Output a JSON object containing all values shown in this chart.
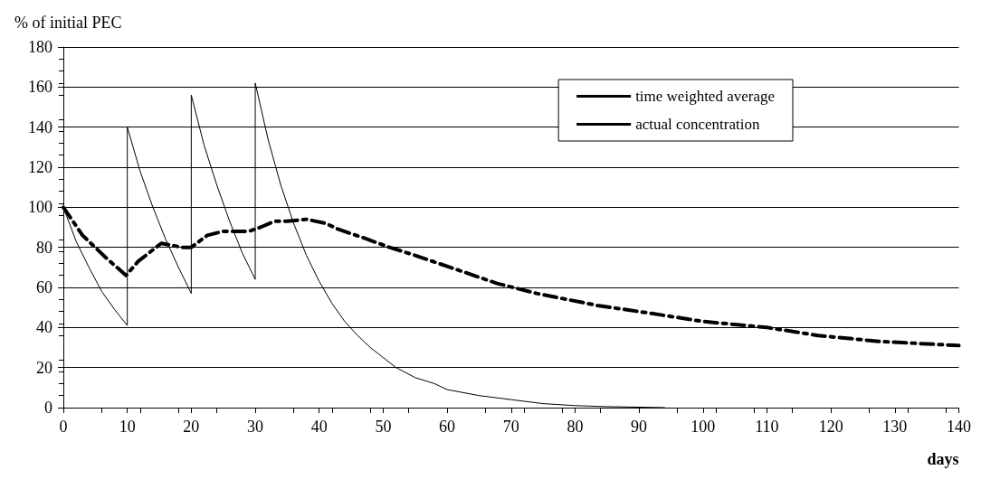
{
  "chart_data": {
    "type": "line",
    "ylabel": "% of initial PEC",
    "xlabel": "days",
    "xlim": [
      0,
      140
    ],
    "xticks": [
      0,
      10,
      20,
      30,
      40,
      50,
      60,
      70,
      80,
      90,
      100,
      110,
      120,
      130,
      140
    ],
    "ylim": [
      0,
      180
    ],
    "yticks": [
      0,
      20,
      40,
      60,
      80,
      100,
      120,
      140,
      160,
      180
    ],
    "grid": "y",
    "legend": "top right",
    "marker": "none",
    "series": [
      {
        "name": "time weighted average",
        "color": "#000000",
        "line_style": "dashed",
        "x": [
          0,
          3,
          6.6,
          9.8,
          11.7,
          15.3,
          18.6,
          20,
          22.5,
          25,
          29,
          30.8,
          33,
          35,
          38,
          41,
          43,
          46.7,
          51,
          55,
          60.5,
          67.8,
          74,
          83.5,
          92,
          100,
          110,
          118,
          127.7,
          140
        ],
        "values": [
          100,
          86,
          75,
          66,
          73,
          82,
          80,
          80,
          86,
          88,
          88,
          90,
          93,
          93,
          94,
          92,
          89,
          85,
          80,
          76,
          70,
          62,
          57,
          51,
          47,
          43,
          40,
          36,
          33,
          31
        ]
      },
      {
        "name": "actual concentration",
        "color": "#000000",
        "line_style": "solid",
        "x": [
          0,
          2,
          4,
          6,
          8,
          10,
          10,
          12,
          14,
          16,
          18,
          20,
          20,
          22,
          24,
          26,
          28,
          30,
          30,
          32,
          34,
          36,
          38,
          40,
          42,
          44,
          46,
          48,
          50,
          52,
          55,
          58,
          60,
          65,
          70,
          75,
          80,
          85,
          94
        ],
        "values": [
          100,
          83,
          70,
          58,
          49,
          41,
          140,
          118,
          100,
          84,
          70,
          57,
          156,
          131,
          111,
          93,
          77,
          64,
          162,
          134,
          111,
          92,
          76,
          63,
          52,
          43,
          36,
          30,
          25,
          20,
          15,
          12,
          9,
          6,
          4,
          2,
          1,
          0.5,
          0
        ]
      }
    ]
  }
}
